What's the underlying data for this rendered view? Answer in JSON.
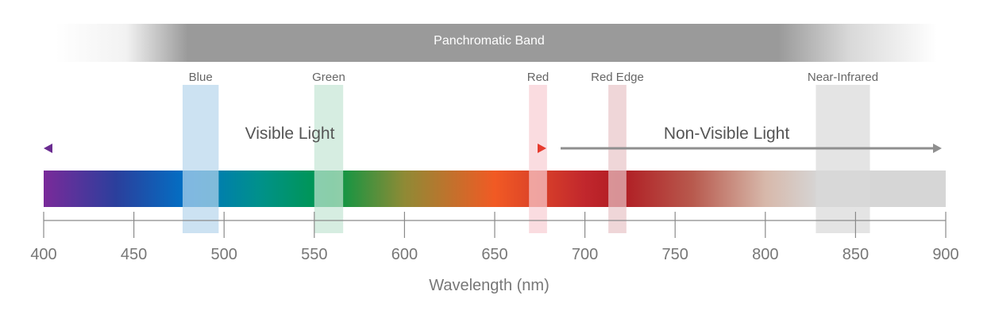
{
  "diagram": {
    "panchromatic": {
      "label": "Panchromatic Band"
    },
    "bands": [
      {
        "label": "Blue",
        "min": 477,
        "max": 497,
        "color": "#b7d6ec"
      },
      {
        "label": "Green",
        "min": 550,
        "max": 566,
        "color": "#c4e6d4"
      },
      {
        "label": "Red",
        "min": 669,
        "max": 679,
        "color": "#f8cdd3"
      },
      {
        "label": "Red Edge",
        "min": 713,
        "max": 723,
        "color": "#e8c4c7"
      },
      {
        "label": "Near-Infrared",
        "min": 828,
        "max": 858,
        "color": "#d9d9d9"
      }
    ],
    "visible": {
      "label": "Visible Light",
      "arrow_color": "#8f8f8f"
    },
    "non_visible": {
      "label": "Non-Visible Light",
      "arrow_color": "#8f8f8f"
    },
    "axis": {
      "label": "Wavelength (nm)",
      "min": 400,
      "max": 900,
      "ticks": [
        400,
        450,
        500,
        550,
        600,
        650,
        700,
        750,
        800,
        850,
        900
      ]
    },
    "spectrum_stops": [
      {
        "nm": 400,
        "color": "#7a2a9a"
      },
      {
        "nm": 440,
        "color": "#2b3f9c"
      },
      {
        "nm": 480,
        "color": "#0072c6"
      },
      {
        "nm": 520,
        "color": "#00918a"
      },
      {
        "nm": 560,
        "color": "#009745"
      },
      {
        "nm": 600,
        "color": "#8f8a35"
      },
      {
        "nm": 650,
        "color": "#f15a24"
      },
      {
        "nm": 700,
        "color": "#c1272d"
      },
      {
        "nm": 720,
        "color": "#b01c22"
      },
      {
        "nm": 760,
        "color": "#b85a4e"
      },
      {
        "nm": 800,
        "color": "#d7b8aa"
      },
      {
        "nm": 830,
        "color": "#d6d6d6"
      },
      {
        "nm": 900,
        "color": "#d6d6d6"
      }
    ]
  }
}
